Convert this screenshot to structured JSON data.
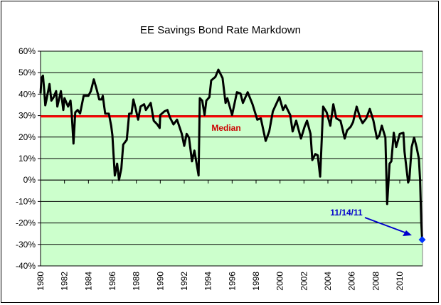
{
  "chart_data": {
    "type": "line",
    "title": "EE Savings Bond Rate Markdown",
    "xlabel": "",
    "ylabel": "",
    "xlim": [
      1980,
      2011.9
    ],
    "ylim": [
      -40,
      60
    ],
    "x_ticks": [
      "1980",
      "1982",
      "1984",
      "1986",
      "1988",
      "1990",
      "1992",
      "1994",
      "1996",
      "1998",
      "2000",
      "2002",
      "2004",
      "2006",
      "2008",
      "2010"
    ],
    "y_ticks": [
      "60%",
      "50%",
      "40%",
      "30%",
      "20%",
      "10%",
      "0%",
      "-10%",
      "-20%",
      "-30%",
      "-40%"
    ],
    "grid": "horizontal",
    "plot_background": "#ccffcc",
    "series": [
      {
        "color": "#000000",
        "points": [
          [
            1980.0,
            40.3
          ],
          [
            1980.08,
            47.5
          ],
          [
            1980.2,
            48.6
          ],
          [
            1980.3,
            42
          ],
          [
            1980.4,
            34.8
          ],
          [
            1980.5,
            37.5
          ],
          [
            1980.75,
            44.7
          ],
          [
            1980.9,
            37
          ],
          [
            1981.1,
            38.6
          ],
          [
            1981.3,
            41.4
          ],
          [
            1981.4,
            34.2
          ],
          [
            1981.7,
            41.4
          ],
          [
            1981.9,
            32.6
          ],
          [
            1982.0,
            38.1
          ],
          [
            1982.3,
            34.2
          ],
          [
            1982.5,
            37
          ],
          [
            1982.6,
            31
          ],
          [
            1982.75,
            17
          ],
          [
            1982.9,
            31.5
          ],
          [
            1983.1,
            32.6
          ],
          [
            1983.3,
            31
          ],
          [
            1983.6,
            39.2
          ],
          [
            1984.0,
            39.2
          ],
          [
            1984.2,
            41.4
          ],
          [
            1984.45,
            46.9
          ],
          [
            1984.7,
            42
          ],
          [
            1984.9,
            37.5
          ],
          [
            1985.1,
            37.5
          ],
          [
            1985.2,
            39.2
          ],
          [
            1985.4,
            30.9
          ],
          [
            1985.7,
            30.9
          ],
          [
            1985.9,
            25.3
          ],
          [
            1986.0,
            20.9
          ],
          [
            1986.2,
            2.1
          ],
          [
            1986.4,
            7.6
          ],
          [
            1986.55,
            0
          ],
          [
            1986.75,
            5.4
          ],
          [
            1986.9,
            16.5
          ],
          [
            1987.2,
            18.7
          ],
          [
            1987.4,
            30.9
          ],
          [
            1987.6,
            30.9
          ],
          [
            1987.75,
            37.5
          ],
          [
            1987.95,
            33.1
          ],
          [
            1988.15,
            28.1
          ],
          [
            1988.35,
            34.2
          ],
          [
            1988.65,
            35.3
          ],
          [
            1988.8,
            32.6
          ],
          [
            1989.2,
            35.9
          ],
          [
            1989.45,
            27.6
          ],
          [
            1989.75,
            25.9
          ],
          [
            1989.95,
            24.2
          ],
          [
            1990.0,
            30.3
          ],
          [
            1990.35,
            32
          ],
          [
            1990.6,
            32.6
          ],
          [
            1990.8,
            29.2
          ],
          [
            1991.1,
            25.9
          ],
          [
            1991.4,
            28.1
          ],
          [
            1991.8,
            21.5
          ],
          [
            1992.0,
            15.9
          ],
          [
            1992.2,
            21.5
          ],
          [
            1992.4,
            19.8
          ],
          [
            1992.65,
            8.7
          ],
          [
            1992.85,
            13.7
          ],
          [
            1993.2,
            2.1
          ],
          [
            1993.3,
            38.1
          ],
          [
            1993.5,
            37
          ],
          [
            1993.7,
            30.3
          ],
          [
            1993.85,
            37
          ],
          [
            1994.1,
            38.6
          ],
          [
            1994.25,
            46.4
          ],
          [
            1994.6,
            48
          ],
          [
            1994.85,
            51.4
          ],
          [
            1995.2,
            47.5
          ],
          [
            1995.45,
            35.9
          ],
          [
            1995.6,
            38.1
          ],
          [
            1996.0,
            30.3
          ],
          [
            1996.4,
            40.9
          ],
          [
            1996.7,
            40.3
          ],
          [
            1996.9,
            35.9
          ],
          [
            1997.3,
            40.9
          ],
          [
            1997.7,
            35.3
          ],
          [
            1998.1,
            28.1
          ],
          [
            1998.4,
            28.7
          ],
          [
            1998.8,
            18.2
          ],
          [
            1999.1,
            22.6
          ],
          [
            1999.4,
            32
          ],
          [
            1999.95,
            38.6
          ],
          [
            2000.25,
            32.6
          ],
          [
            2000.45,
            34.8
          ],
          [
            2000.85,
            30.3
          ],
          [
            2001.05,
            22.6
          ],
          [
            2001.35,
            27.6
          ],
          [
            2001.75,
            19.3
          ],
          [
            2002.05,
            24.8
          ],
          [
            2002.25,
            27.6
          ],
          [
            2002.55,
            21.5
          ],
          [
            2002.7,
            9.3
          ],
          [
            2002.95,
            12.1
          ],
          [
            2003.15,
            11.5
          ],
          [
            2003.35,
            1.6
          ],
          [
            2003.6,
            34.2
          ],
          [
            2003.9,
            31.5
          ],
          [
            2004.2,
            25.3
          ],
          [
            2004.45,
            35.3
          ],
          [
            2004.7,
            28.7
          ],
          [
            2005.05,
            27.6
          ],
          [
            2005.2,
            24.2
          ],
          [
            2005.4,
            19.3
          ],
          [
            2005.6,
            23.1
          ],
          [
            2005.9,
            24.8
          ],
          [
            2006.1,
            27
          ],
          [
            2006.4,
            34.2
          ],
          [
            2006.7,
            28.7
          ],
          [
            2006.9,
            26.5
          ],
          [
            2007.2,
            28.7
          ],
          [
            2007.5,
            33.1
          ],
          [
            2007.8,
            27.6
          ],
          [
            2008.1,
            19.3
          ],
          [
            2008.3,
            20.9
          ],
          [
            2008.5,
            25.3
          ],
          [
            2008.8,
            19.8
          ],
          [
            2008.95,
            -11.2
          ],
          [
            2009.15,
            7.6
          ],
          [
            2009.3,
            8.7
          ],
          [
            2009.5,
            22
          ],
          [
            2009.7,
            15.4
          ],
          [
            2010.0,
            21.5
          ],
          [
            2010.3,
            22
          ],
          [
            2010.4,
            13.2
          ],
          [
            2010.7,
            -1.2
          ],
          [
            2010.8,
            0.4
          ],
          [
            2011.0,
            15.4
          ],
          [
            2011.2,
            19.8
          ],
          [
            2011.4,
            15.4
          ],
          [
            2011.6,
            9.9
          ],
          [
            2011.7,
            0
          ],
          [
            2011.8,
            -20
          ],
          [
            2011.87,
            -27.8
          ]
        ]
      }
    ],
    "median": {
      "label": "Median",
      "value": 29.6,
      "color": "#ff0000",
      "label_color": "#cc0000"
    },
    "annotation": {
      "label": "11/14/11",
      "point": [
        2011.87,
        -27.8
      ],
      "color": "#0000cc",
      "marker_color": "#0033ff"
    }
  }
}
